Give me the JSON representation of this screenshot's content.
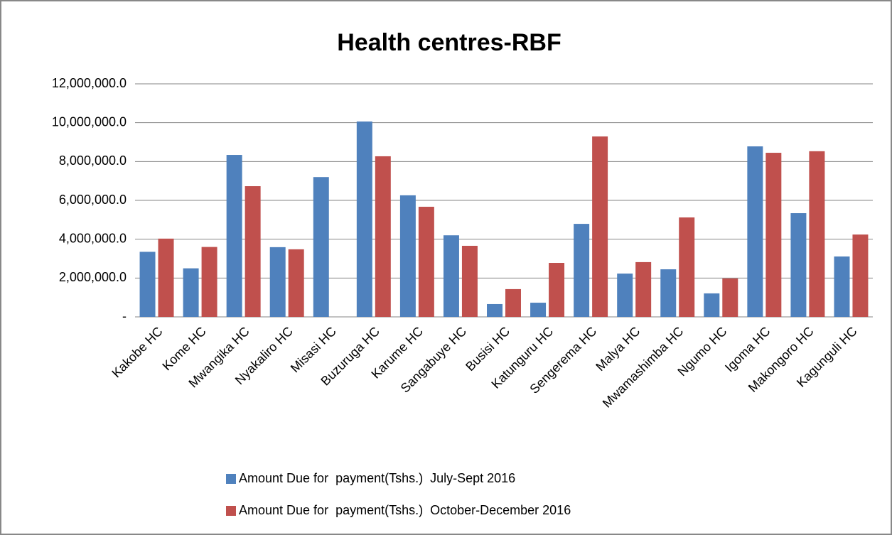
{
  "chart_data": {
    "type": "bar",
    "title": "Health centres-RBF",
    "categories": [
      "Kakobe HC",
      "Kome HC",
      "Mwangika HC",
      "Nyakaliro HC",
      "Misasi HC",
      "Buzuruga HC",
      "Karume HC",
      "Sangabuye HC",
      "Busisi HC",
      "Katunguru HC",
      "Sengerema HC",
      "Malya HC",
      "Mwamashimba HC",
      "Ngumo HC",
      "Igoma HC",
      "Makongoro HC",
      "Kagunguli HC"
    ],
    "series": [
      {
        "name": "Amount Due for  payment(Tshs.)  July-Sept 2016",
        "color": "#4f81bd",
        "values": [
          3350000,
          2500000,
          8340000,
          3590000,
          7200000,
          10060000,
          6260000,
          4200000,
          660000,
          730000,
          4790000,
          2230000,
          2450000,
          1210000,
          8780000,
          5340000,
          3110000
        ]
      },
      {
        "name": "Amount Due for  payment(Tshs.)  October-December 2016",
        "color": "#c0504d",
        "values": [
          4030000,
          3600000,
          6730000,
          3480000,
          null,
          8270000,
          5670000,
          3660000,
          1430000,
          2780000,
          9290000,
          2820000,
          5120000,
          1980000,
          8450000,
          8530000,
          4240000
        ]
      }
    ],
    "ylim": [
      0,
      12000000
    ],
    "yticks": [
      {
        "value": 0,
        "label": "-"
      },
      {
        "value": 2000000,
        "label": "2,000,000.0"
      },
      {
        "value": 4000000,
        "label": "4,000,000.0"
      },
      {
        "value": 6000000,
        "label": "6,000,000.0"
      },
      {
        "value": 8000000,
        "label": "8,000,000.0"
      },
      {
        "value": 10000000,
        "label": "10,000,000.0"
      },
      {
        "value": 12000000,
        "label": "12,000,000.0"
      }
    ],
    "grid": true,
    "legend": "bottom"
  }
}
